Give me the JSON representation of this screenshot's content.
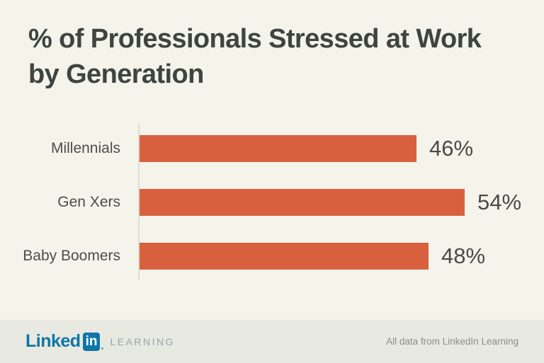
{
  "colors": {
    "background": "#f5f4eb",
    "footer_background": "#e8e9e0",
    "bar": "#d9603e",
    "title": "#3e4541",
    "axis": "#dddcd1",
    "label": "#4b4e4a",
    "value": "#4a4a4a",
    "linkedin_blue": "#0e76a8",
    "learning_gray": "#9aa4ab",
    "footnote": "#8b8f85"
  },
  "title": {
    "line1": "% of Professionals Stressed at Work",
    "line2": "by Generation"
  },
  "chart_data": {
    "type": "bar",
    "orientation": "horizontal",
    "title": "% of Professionals Stressed at Work by Generation",
    "categories": [
      "Millennials",
      "Gen Xers",
      "Baby Boomers"
    ],
    "values": [
      46,
      54,
      48
    ],
    "value_labels": [
      "46%",
      "54%",
      "48%"
    ],
    "unit": "%",
    "xlim": [
      0,
      64
    ],
    "grid": false,
    "legend": "none",
    "bar_color": "#d9603e",
    "value_label_position": "right-of-bar"
  },
  "footer": {
    "logo": {
      "linked": "Linked",
      "in": "in",
      "learning": "LEARNING"
    },
    "source_note": "All data from LinkedIn Learning"
  }
}
